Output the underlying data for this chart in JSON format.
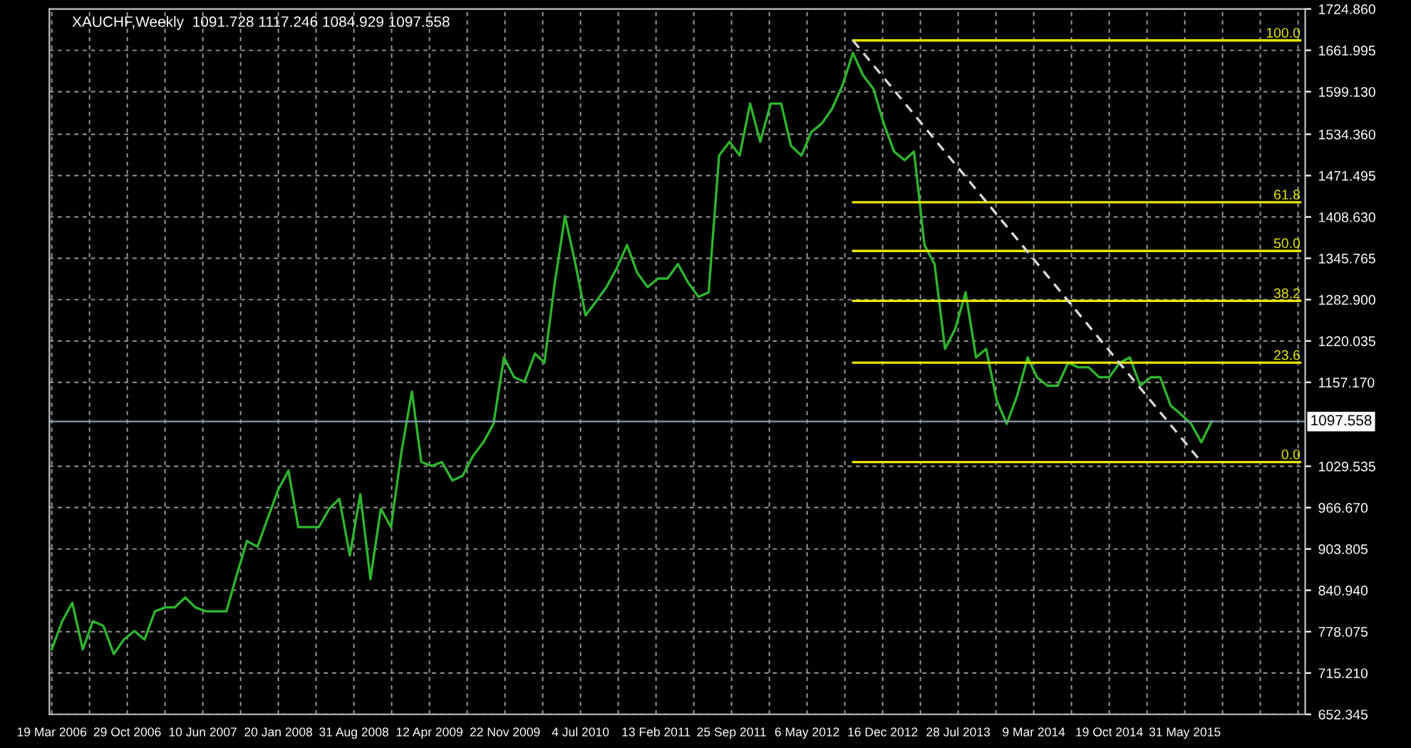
{
  "chart_data": {
    "type": "line",
    "title": "XAUCHF,Weekly  1091.728 1117.246 1084.929 1097.558",
    "x": [
      "2006-03-19",
      "2006-04-19",
      "2006-05-19",
      "2006-06-19",
      "2006-07-19",
      "2006-08-19",
      "2006-09-19",
      "2006-10-19",
      "2006-11-19",
      "2006-12-19",
      "2007-01-19",
      "2007-02-19",
      "2007-03-19",
      "2007-04-19",
      "2007-05-19",
      "2007-06-19",
      "2007-07-19",
      "2007-08-19",
      "2007-09-19",
      "2007-10-19",
      "2007-11-19",
      "2007-12-19",
      "2008-01-19",
      "2008-02-19",
      "2008-03-19",
      "2008-04-19",
      "2008-05-19",
      "2008-06-19",
      "2008-07-19",
      "2008-08-19",
      "2008-09-19",
      "2008-10-19",
      "2008-11-19",
      "2008-12-19",
      "2009-01-19",
      "2009-02-19",
      "2009-03-19",
      "2009-04-19",
      "2009-05-19",
      "2009-06-19",
      "2009-07-19",
      "2009-08-19",
      "2009-09-19",
      "2009-10-19",
      "2009-11-19",
      "2009-12-19",
      "2010-01-19",
      "2010-02-19",
      "2010-03-19",
      "2010-04-19",
      "2010-05-19",
      "2010-06-19",
      "2010-07-19",
      "2010-08-19",
      "2010-09-19",
      "2010-10-19",
      "2010-11-19",
      "2010-12-19",
      "2011-01-19",
      "2011-02-19",
      "2011-03-19",
      "2011-04-19",
      "2011-05-19",
      "2011-06-19",
      "2011-07-19",
      "2011-08-19",
      "2011-09-19",
      "2011-10-19",
      "2011-11-19",
      "2011-12-19",
      "2012-01-19",
      "2012-02-19",
      "2012-03-19",
      "2012-04-19",
      "2012-05-19",
      "2012-06-19",
      "2012-07-19",
      "2012-08-19",
      "2012-09-19",
      "2012-10-19",
      "2012-11-19",
      "2012-12-19",
      "2013-01-19",
      "2013-02-19",
      "2013-03-19",
      "2013-04-19",
      "2013-05-19",
      "2013-06-19",
      "2013-07-19",
      "2013-08-19",
      "2013-09-19",
      "2013-10-19",
      "2013-11-19",
      "2013-12-19",
      "2014-01-19",
      "2014-02-19",
      "2014-03-19",
      "2014-04-19",
      "2014-05-19",
      "2014-06-19",
      "2014-07-19",
      "2014-08-19",
      "2014-09-19",
      "2014-10-19",
      "2014-11-19",
      "2014-12-19",
      "2015-01-19",
      "2015-02-19",
      "2015-03-19",
      "2015-04-19",
      "2015-05-19",
      "2015-06-19",
      "2015-07-19",
      "2015-08-19"
    ],
    "series": [
      {
        "color": "#2fb52f",
        "values": [
          751,
          794,
          822,
          751,
          794,
          787,
          744,
          766,
          779,
          766,
          809,
          815,
          815,
          830,
          815,
          809,
          809,
          809,
          865,
          916,
          907,
          950,
          993,
          1023,
          937,
          937,
          937,
          965,
          980,
          894,
          987,
          858,
          965,
          937,
          1051,
          1143,
          1036,
          1030,
          1036,
          1008,
          1015,
          1045,
          1066,
          1094,
          1195,
          1165,
          1158,
          1201,
          1187,
          1309,
          1410,
          1337,
          1259,
          1280,
          1302,
          1330,
          1366,
          1324,
          1302,
          1315,
          1315,
          1337,
          1309,
          1287,
          1294,
          1502,
          1523,
          1502,
          1581,
          1523,
          1581,
          1581,
          1517,
          1502,
          1538,
          1551,
          1573,
          1609,
          1658,
          1624,
          1603,
          1551,
          1508,
          1495,
          1508,
          1366,
          1337,
          1208,
          1238,
          1294,
          1195,
          1208,
          1130,
          1094,
          1137,
          1195,
          1165,
          1152,
          1152,
          1187,
          1180,
          1180,
          1165,
          1165,
          1187,
          1195,
          1152,
          1165,
          1165,
          1122,
          1109,
          1094,
          1066,
          1098
        ]
      },
      {
        "type": "line",
        "name": "100.0",
        "color": "#e6e600",
        "x": [
          "2012-09-19",
          "2016-05-08"
        ],
        "values": [
          1677,
          1677
        ]
      },
      {
        "type": "line",
        "name": "61.8",
        "color": "#e6e600",
        "x": [
          "2012-09-19",
          "2016-05-08"
        ],
        "values": [
          1431,
          1431
        ]
      },
      {
        "type": "line",
        "name": "50.0",
        "color": "#e6e600",
        "x": [
          "2012-09-19",
          "2016-05-08"
        ],
        "values": [
          1357,
          1357
        ]
      },
      {
        "type": "line",
        "name": "38.2",
        "color": "#e6e600",
        "x": [
          "2012-09-19",
          "2016-05-08"
        ],
        "values": [
          1281,
          1281
        ]
      },
      {
        "type": "line",
        "name": "23.6",
        "color": "#e6e600",
        "x": [
          "2012-09-19",
          "2016-05-08"
        ],
        "values": [
          1187,
          1187
        ]
      },
      {
        "type": "line",
        "name": "0.0",
        "color": "#e6e600",
        "x": [
          "2012-09-19",
          "2016-05-08"
        ],
        "values": [
          1036,
          1036
        ]
      },
      {
        "type": "line",
        "color": "#d8d8d8",
        "line_style": "dashed",
        "x": [
          "2012-09-19",
          "2015-07-19"
        ],
        "values": [
          1677,
          1036
        ]
      }
    ],
    "xlim": [
      "2006-03-12",
      "2016-05-22"
    ],
    "xticks": [
      {
        "value": "2006-03-19",
        "label": "19 Mar 2006"
      },
      {
        "value": "2006-07-09",
        "label": null
      },
      {
        "value": "2006-10-29",
        "label": "29 Oct 2006"
      },
      {
        "value": "2007-02-18",
        "label": null
      },
      {
        "value": "2007-06-10",
        "label": "10 Jun 2007"
      },
      {
        "value": "2007-09-30",
        "label": null
      },
      {
        "value": "2008-01-20",
        "label": "20 Jan 2008"
      },
      {
        "value": "2008-05-11",
        "label": null
      },
      {
        "value": "2008-08-31",
        "label": "31 Aug 2008"
      },
      {
        "value": "2008-12-21",
        "label": null
      },
      {
        "value": "2009-04-12",
        "label": "12 Apr 2009"
      },
      {
        "value": "2009-08-02",
        "label": null
      },
      {
        "value": "2009-11-22",
        "label": "22 Nov 2009"
      },
      {
        "value": "2010-03-14",
        "label": null
      },
      {
        "value": "2010-07-04",
        "label": "4 Jul 2010"
      },
      {
        "value": "2010-10-24",
        "label": null
      },
      {
        "value": "2011-02-13",
        "label": "13 Feb 2011"
      },
      {
        "value": "2011-06-05",
        "label": null
      },
      {
        "value": "2011-09-25",
        "label": "25 Sep 2011"
      },
      {
        "value": "2012-01-15",
        "label": null
      },
      {
        "value": "2012-05-06",
        "label": "6 May 2012"
      },
      {
        "value": "2012-08-26",
        "label": null
      },
      {
        "value": "2012-12-16",
        "label": "16 Dec 2012"
      },
      {
        "value": "2013-04-07",
        "label": null
      },
      {
        "value": "2013-07-28",
        "label": "28 Jul 2013"
      },
      {
        "value": "2013-11-17",
        "label": null
      },
      {
        "value": "2014-03-09",
        "label": "9 Mar 2014"
      },
      {
        "value": "2014-06-29",
        "label": null
      },
      {
        "value": "2014-10-19",
        "label": "19 Oct 2014"
      },
      {
        "value": "2015-02-08",
        "label": null
      },
      {
        "value": "2015-05-31",
        "label": "31 May 2015"
      },
      {
        "value": "2015-09-20",
        "label": null
      },
      {
        "value": "2016-01-10",
        "label": null
      },
      {
        "value": "2016-05-01",
        "label": null
      }
    ],
    "ylim": [
      652.345,
      1724.86
    ],
    "yticks": [
      652.345,
      {
        "value": 715.21,
        "label": "715.210"
      },
      778.075,
      {
        "value": 840.94,
        "label": "840.940"
      },
      903.805,
      {
        "value": 966.67,
        "label": "966.670"
      },
      1029.535,
      {
        "value": 1157.17,
        "label": "1157.170"
      },
      1220.035,
      {
        "value": 1282.9,
        "label": "1282.900"
      },
      1345.765,
      {
        "value": 1408.63,
        "label": "1408.630"
      },
      1471.495,
      {
        "value": 1534.36,
        "label": "1534.360"
      },
      {
        "value": 1599.13,
        "label": "1599.130"
      },
      1661.995,
      {
        "value": 1724.86,
        "label": "1724.860"
      }
    ],
    "ref_lines": [
      {
        "axis": "y",
        "value": 1097.558,
        "label": "1097.558",
        "color": "#8a9bb0"
      }
    ],
    "grid": true
  }
}
